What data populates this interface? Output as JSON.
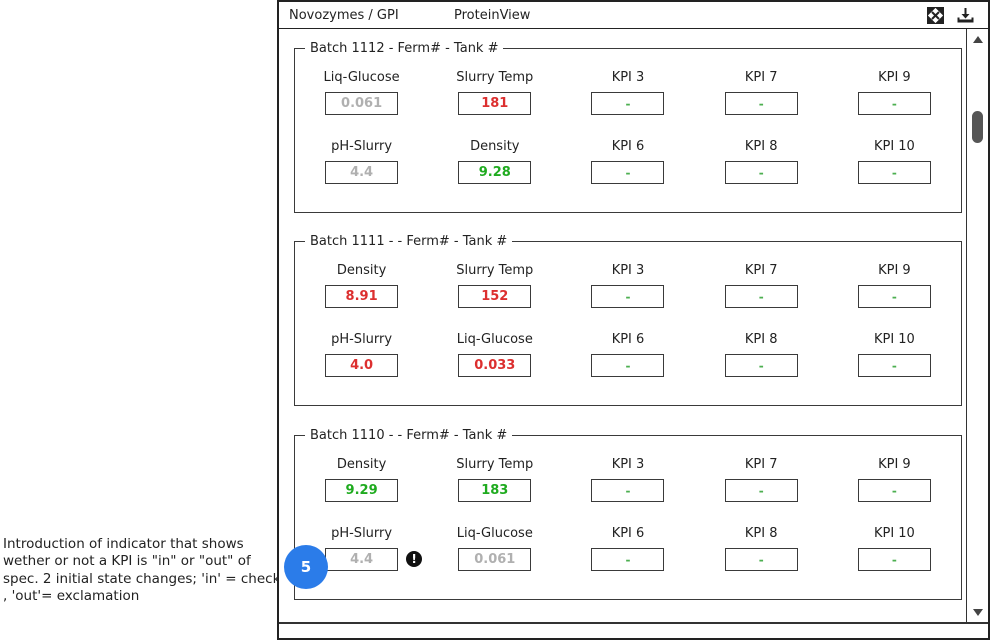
{
  "annotation": {
    "text": "Introduction of indicator that shows wether or not a KPI is \"in\" or \"out\" of spec. 2 initial state changes; 'in' = check , 'out'= exclamation",
    "step_number": "5"
  },
  "header": {
    "breadcrumb": "Novozymes / GPI",
    "title": "ProteinView",
    "icons": [
      "expand-icon",
      "download-icon"
    ]
  },
  "colors": {
    "value_gray": "#b0b0b0",
    "value_red": "#dc2f2f",
    "value_green": "#1fab1f",
    "kpi_dash_green": "#4caf50",
    "callout_blue": "#2b7ce9",
    "border_dark": "#3a3a3a"
  },
  "scrollbar": {
    "orientation": "vertical",
    "thumb_position": "near-top"
  },
  "panels": [
    {
      "title": "Batch 1112 - Ferm# - Tank #",
      "fields": [
        {
          "label": "Liq-Glucose",
          "value": "0.061",
          "state": "gray"
        },
        {
          "label": "Slurry Temp",
          "value": "181",
          "state": "red"
        },
        {
          "label": "KPI 3",
          "value": "-",
          "state": "kpi"
        },
        {
          "label": "KPI 7",
          "value": "-",
          "state": "kpi"
        },
        {
          "label": "KPI 9",
          "value": "-",
          "state": "kpi"
        },
        {
          "label": "pH-Slurry",
          "value": "4.4",
          "state": "gray"
        },
        {
          "label": "Density",
          "value": "9.28",
          "state": "green"
        },
        {
          "label": "KPI 6",
          "value": "-",
          "state": "kpi"
        },
        {
          "label": "KPI 8",
          "value": "-",
          "state": "kpi"
        },
        {
          "label": "KPI 10",
          "value": "-",
          "state": "kpi"
        }
      ]
    },
    {
      "title": "Batch 1111 - - Ferm# - Tank #",
      "fields": [
        {
          "label": "Density",
          "value": "8.91",
          "state": "red"
        },
        {
          "label": "Slurry Temp",
          "value": "152",
          "state": "red"
        },
        {
          "label": "KPI 3",
          "value": "-",
          "state": "kpi"
        },
        {
          "label": "KPI 7",
          "value": "-",
          "state": "kpi"
        },
        {
          "label": "KPI 9",
          "value": "-",
          "state": "kpi"
        },
        {
          "label": "pH-Slurry",
          "value": "4.0",
          "state": "red"
        },
        {
          "label": "Liq-Glucose",
          "value": "0.033",
          "state": "red"
        },
        {
          "label": "KPI 6",
          "value": "-",
          "state": "kpi"
        },
        {
          "label": "KPI 8",
          "value": "-",
          "state": "kpi"
        },
        {
          "label": "KPI 10",
          "value": "-",
          "state": "kpi"
        }
      ]
    },
    {
      "title": "Batch 1110 - - Ferm# - Tank #",
      "fields": [
        {
          "label": "Density",
          "value": "9.29",
          "state": "green"
        },
        {
          "label": "Slurry Temp",
          "value": "183",
          "state": "green"
        },
        {
          "label": "KPI 3",
          "value": "-",
          "state": "kpi"
        },
        {
          "label": "KPI 7",
          "value": "-",
          "state": "kpi"
        },
        {
          "label": "KPI 9",
          "value": "-",
          "state": "kpi"
        },
        {
          "label": "pH-Slurry",
          "value": "4.4",
          "state": "gray",
          "indicator": "exclamation"
        },
        {
          "label": "Liq-Glucose",
          "value": "0.061",
          "state": "gray"
        },
        {
          "label": "KPI 6",
          "value": "-",
          "state": "kpi"
        },
        {
          "label": "KPI 8",
          "value": "-",
          "state": "kpi"
        },
        {
          "label": "KPI 10",
          "value": "-",
          "state": "kpi"
        }
      ]
    }
  ]
}
